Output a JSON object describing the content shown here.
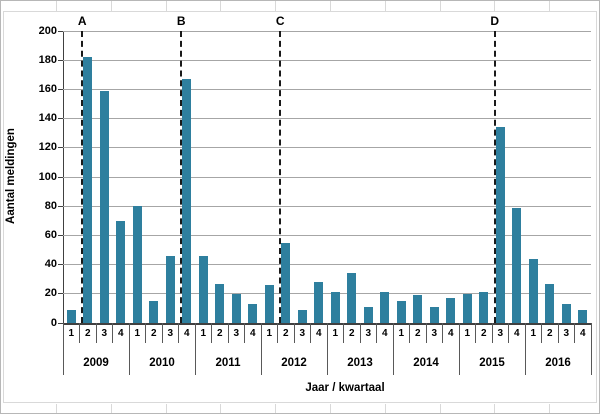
{
  "chart_data": {
    "type": "bar",
    "title": "",
    "xlabel": "Jaar / kwartaal",
    "ylabel": "Aantal meldingen",
    "ylim": [
      0,
      200
    ],
    "ytick_step": 20,
    "grid": "horizontal",
    "legend_position": "none",
    "bar_color": "#2E7F9E",
    "gridline_color": "#A6A6A6",
    "axis_color": "#404040",
    "categories_years": [
      "2009",
      "2010",
      "2011",
      "2012",
      "2013",
      "2014",
      "2015",
      "2016"
    ],
    "quarter_labels": [
      "1",
      "2",
      "3",
      "4"
    ],
    "series": [
      {
        "name": "Aantal meldingen",
        "values_by_year": {
          "2009": [
            9,
            182,
            159,
            70
          ],
          "2010": [
            80,
            15,
            46,
            167
          ],
          "2011": [
            46,
            27,
            20,
            13
          ],
          "2012": [
            26,
            55,
            9,
            28
          ],
          "2013": [
            21,
            34,
            11,
            21
          ],
          "2014": [
            15,
            19,
            11,
            17
          ],
          "2015": [
            20,
            21,
            134,
            79
          ],
          "2016": [
            44,
            27,
            13,
            9
          ]
        }
      }
    ],
    "annotations": [
      {
        "label": "A",
        "year": "2009",
        "before_quarter": "2",
        "flat_index": 1
      },
      {
        "label": "B",
        "year": "2010",
        "before_quarter": "4",
        "flat_index": 7
      },
      {
        "label": "C",
        "year": "2012",
        "before_quarter": "2",
        "flat_index": 13
      },
      {
        "label": "D",
        "year": "2015",
        "before_quarter": "3",
        "flat_index": 26
      }
    ]
  }
}
